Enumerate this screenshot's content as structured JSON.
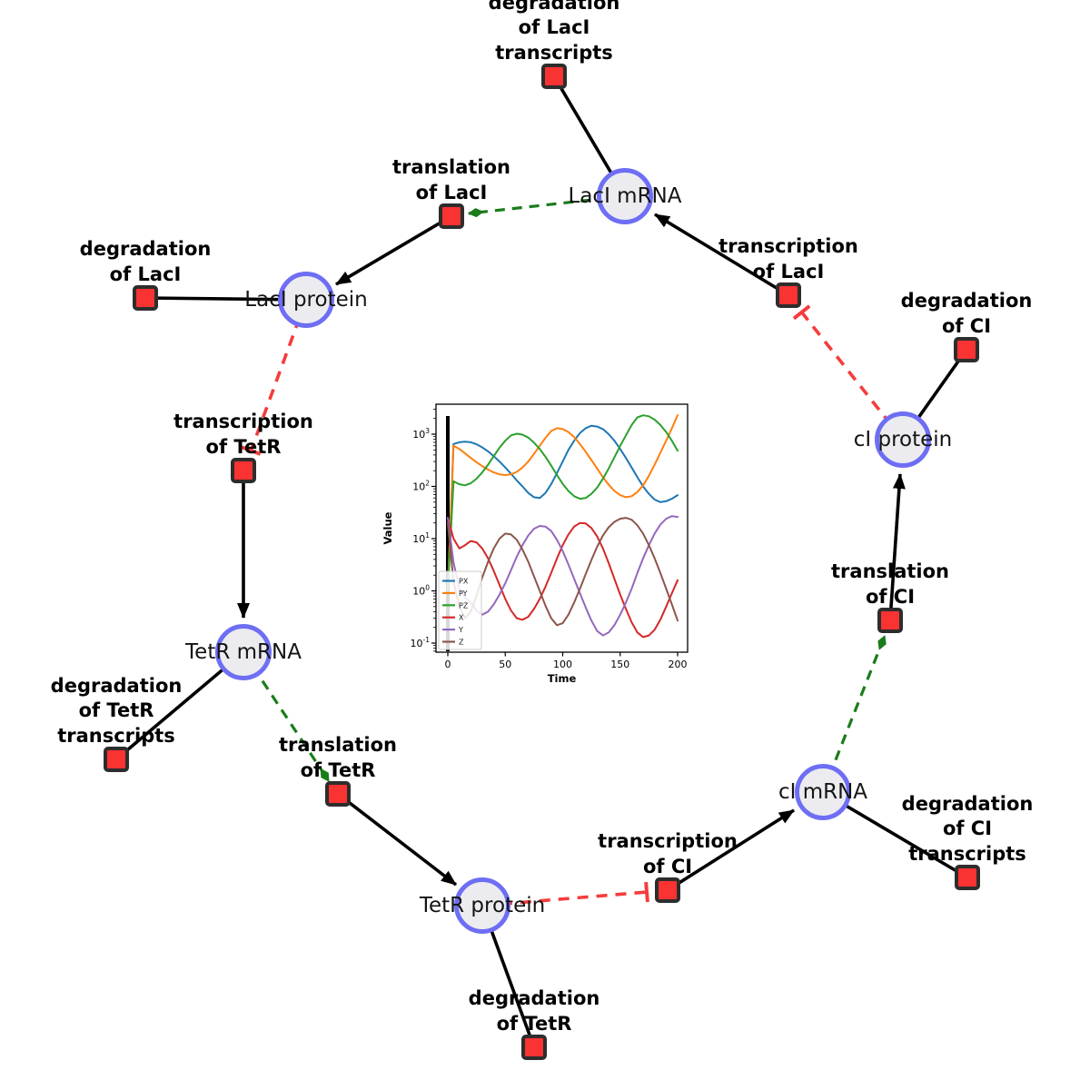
{
  "diagram": {
    "species": [
      {
        "id": "laci-mrna",
        "label": "LacI mRNA"
      },
      {
        "id": "laci-protein",
        "label": "LacI protein"
      },
      {
        "id": "tetr-mrna",
        "label": "TetR mRNA"
      },
      {
        "id": "tetr-protein",
        "label": "TetR protein"
      },
      {
        "id": "ci-mrna",
        "label": "cI mRNA"
      },
      {
        "id": "ci-protein",
        "label": "cI protein"
      }
    ],
    "reactions": [
      {
        "id": "degradation-laci-transcripts",
        "label": "degradation of LacI\ntranscripts"
      },
      {
        "id": "translation-laci",
        "label": "translation of LacI"
      },
      {
        "id": "degradation-laci",
        "label": "degradation of LacI"
      },
      {
        "id": "transcription-tetr",
        "label": "transcription of TetR"
      },
      {
        "id": "degradation-tetr-transcripts",
        "label": "degradation of TetR\ntranscripts"
      },
      {
        "id": "translation-tetr",
        "label": "translation of TetR"
      },
      {
        "id": "degradation-tetr",
        "label": "degradation of TetR"
      },
      {
        "id": "transcription-ci",
        "label": "transcription of CI"
      },
      {
        "id": "degradation-ci-transcripts",
        "label": "degradation of CI\ntranscripts"
      },
      {
        "id": "translation-ci",
        "label": "translation of CI"
      },
      {
        "id": "degradation-ci",
        "label": "degradation of CI"
      },
      {
        "id": "transcription-laci",
        "label": "transcription of LacI"
      }
    ],
    "colors": {
      "species_fill": "#ececf0",
      "species_border": "#6e6ef5",
      "reaction_fill": "#f93232",
      "reaction_border": "#2d2d2d",
      "flow_edge": "#000000",
      "activation_edge": "#1a7c1a",
      "inhibition_edge": "#f53c3c"
    }
  },
  "chart_data": {
    "type": "line",
    "title": "",
    "xlabel": "Time",
    "ylabel": "Value",
    "x_ticks": [
      0,
      50,
      100,
      150,
      200
    ],
    "xlim": [
      -10.3,
      208.8
    ],
    "y_scale": "log",
    "y_tick_exponents": [
      -1,
      0,
      1,
      2,
      3
    ],
    "ylim_exponents": [
      -1.17,
      3.57
    ],
    "legend_position": "lower left",
    "vline_x": 0,
    "x": [
      0,
      5,
      10,
      15,
      20,
      25,
      30,
      35,
      40,
      45,
      50,
      55,
      60,
      65,
      70,
      75,
      80,
      85,
      90,
      95,
      100,
      105,
      110,
      115,
      120,
      125,
      130,
      135,
      140,
      145,
      150,
      155,
      160,
      165,
      170,
      175,
      180,
      185,
      190,
      195,
      200
    ],
    "series": [
      {
        "name": "PX",
        "color": "#1f77b4",
        "values": [
          1,
          650,
          700,
          720,
          700,
          640,
          560,
          470,
          380,
          300,
          230,
          175,
          130,
          100,
          75,
          62,
          60,
          75,
          110,
          180,
          300,
          500,
          750,
          1050,
          1300,
          1450,
          1400,
          1250,
          1000,
          750,
          520,
          350,
          230,
          150,
          100,
          72,
          56,
          50,
          52,
          58,
          68
        ]
      },
      {
        "name": "PY",
        "color": "#ff7f0e",
        "values": [
          1,
          600,
          520,
          430,
          350,
          290,
          245,
          210,
          185,
          170,
          165,
          170,
          190,
          230,
          300,
          420,
          600,
          850,
          1150,
          1300,
          1250,
          1100,
          880,
          650,
          460,
          320,
          220,
          150,
          108,
          82,
          68,
          62,
          65,
          78,
          105,
          160,
          260,
          440,
          750,
          1300,
          2300
        ]
      },
      {
        "name": "PZ",
        "color": "#2ca02c",
        "values": [
          1,
          125,
          110,
          105,
          115,
          140,
          185,
          260,
          380,
          550,
          750,
          950,
          1020,
          980,
          860,
          690,
          520,
          370,
          250,
          165,
          112,
          82,
          65,
          58,
          60,
          72,
          95,
          140,
          220,
          360,
          600,
          950,
          1500,
          2100,
          2300,
          2200,
          1900,
          1500,
          1100,
          750,
          480
        ]
      },
      {
        "name": "X",
        "color": "#d62728",
        "values": [
          25,
          10,
          6.5,
          7.5,
          9,
          8.5,
          6.5,
          4.2,
          2.4,
          1.3,
          0.7,
          0.42,
          0.3,
          0.28,
          0.32,
          0.45,
          0.7,
          1.2,
          2.2,
          4.2,
          7.5,
          12,
          17,
          20,
          19.5,
          16,
          11,
          6.5,
          3.4,
          1.7,
          0.85,
          0.45,
          0.25,
          0.16,
          0.13,
          0.14,
          0.18,
          0.28,
          0.5,
          0.9,
          1.6
        ]
      },
      {
        "name": "Y",
        "color": "#9467bd",
        "values": [
          25,
          3.5,
          1.1,
          0.75,
          0.6,
          0.42,
          0.35,
          0.4,
          0.55,
          0.85,
          1.4,
          2.5,
          4.5,
          7.5,
          11.5,
          15.5,
          17.5,
          17,
          14,
          9.5,
          5.8,
          3.2,
          1.7,
          0.9,
          0.48,
          0.27,
          0.17,
          0.14,
          0.16,
          0.22,
          0.35,
          0.6,
          1.1,
          2.2,
          4.2,
          7.5,
          12.5,
          18.5,
          24,
          27,
          26
        ]
      },
      {
        "name": "Z",
        "color": "#8c564b",
        "values": [
          20,
          1.5,
          0.5,
          0.3,
          0.4,
          0.8,
          1.8,
          3.6,
          6.5,
          10,
          12.5,
          12,
          9.5,
          6.2,
          3.6,
          1.9,
          1.0,
          0.52,
          0.3,
          0.22,
          0.24,
          0.35,
          0.6,
          1.1,
          2.1,
          3.9,
          7,
          11.5,
          16.5,
          21,
          24,
          25,
          23,
          18,
          12.5,
          7.5,
          4.2,
          2.2,
          1.1,
          0.55,
          0.27
        ]
      }
    ]
  }
}
